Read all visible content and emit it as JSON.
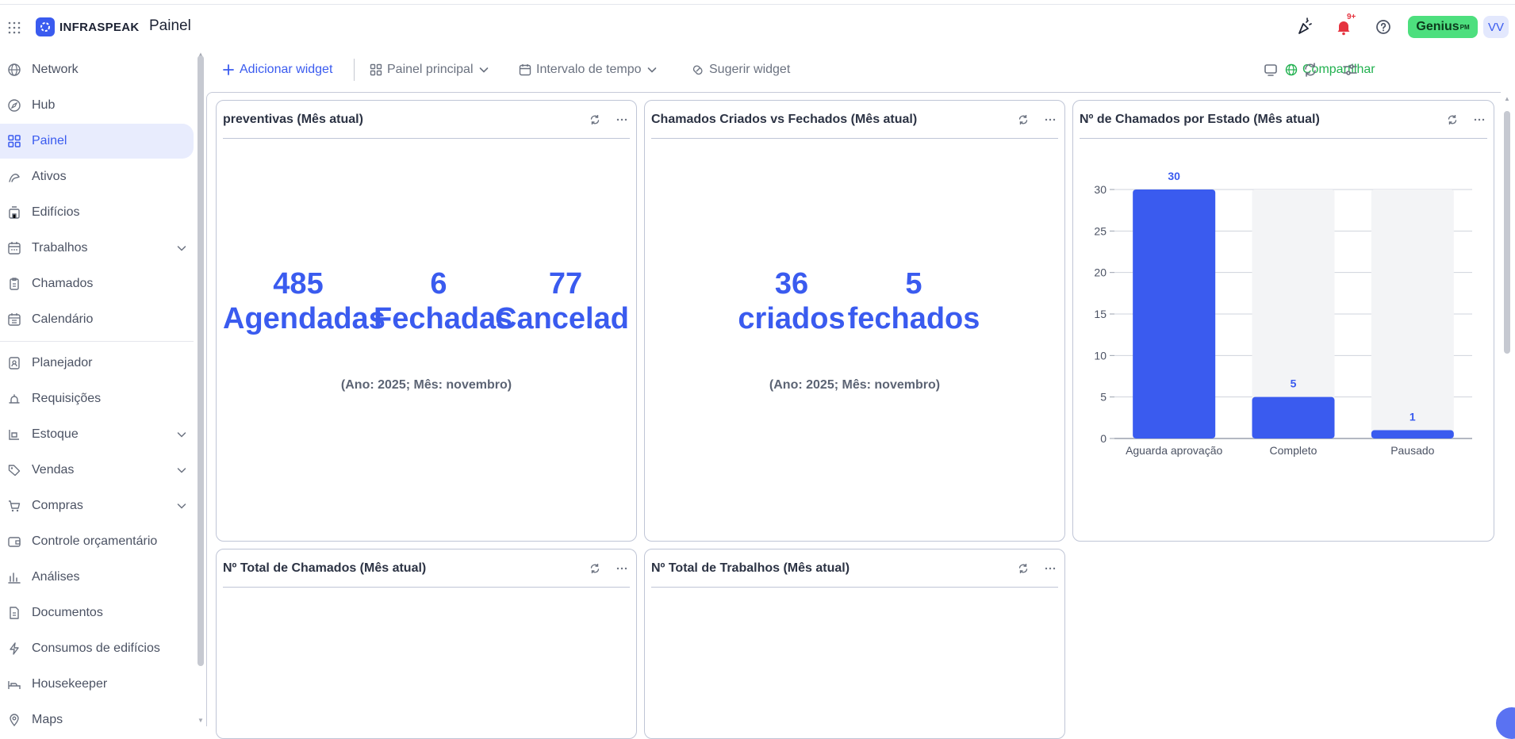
{
  "app": {
    "brand": "INFRASPEAK",
    "page_title": "Painel",
    "notifications_badge": "9+",
    "genius_label": "Genius",
    "genius_suffix": "PM",
    "avatar_initials": "VV"
  },
  "sidebar": {
    "items": [
      {
        "label": "Network",
        "icon": "globe-icon",
        "active": false,
        "expandable": false
      },
      {
        "label": "Hub",
        "icon": "compass-icon",
        "active": false,
        "expandable": false
      },
      {
        "label": "Painel",
        "icon": "dashboard-icon",
        "active": true,
        "expandable": false
      },
      {
        "label": "Ativos",
        "icon": "asset-icon",
        "active": false,
        "expandable": false
      },
      {
        "label": "Edifícios",
        "icon": "building-icon",
        "active": false,
        "expandable": false
      },
      {
        "label": "Trabalhos",
        "icon": "calendar-grid-icon",
        "active": false,
        "expandable": true
      },
      {
        "label": "Chamados",
        "icon": "clipboard-icon",
        "active": false,
        "expandable": false
      },
      {
        "label": "Calendário",
        "icon": "calendar-icon",
        "active": false,
        "expandable": false
      },
      {
        "label": "Planejador",
        "icon": "planner-icon",
        "active": false,
        "expandable": false
      },
      {
        "label": "Requisições",
        "icon": "bell-tray-icon",
        "active": false,
        "expandable": false
      },
      {
        "label": "Estoque",
        "icon": "stock-icon",
        "active": false,
        "expandable": true
      },
      {
        "label": "Vendas",
        "icon": "tag-icon",
        "active": false,
        "expandable": true
      },
      {
        "label": "Compras",
        "icon": "cart-icon",
        "active": false,
        "expandable": true
      },
      {
        "label": "Controle orçamentário",
        "icon": "wallet-icon",
        "active": false,
        "expandable": false
      },
      {
        "label": "Análises",
        "icon": "analytics-icon",
        "active": false,
        "expandable": false
      },
      {
        "label": "Documentos",
        "icon": "document-icon",
        "active": false,
        "expandable": false
      },
      {
        "label": "Consumos de edifícios",
        "icon": "lightning-icon",
        "active": false,
        "expandable": false
      },
      {
        "label": "Housekeeper",
        "icon": "bed-icon",
        "active": false,
        "expandable": false
      },
      {
        "label": "Maps",
        "icon": "map-pin-icon",
        "active": false,
        "expandable": false
      }
    ]
  },
  "toolbar": {
    "add_widget": "Adicionar widget",
    "main_panel": "Painel principal",
    "time_interval": "Intervalo de tempo",
    "suggest_widget": "Sugerir widget",
    "share": "Compartilhar"
  },
  "widgets": {
    "preventivas": {
      "title": "preventivas (Mês atual)",
      "kpis": [
        {
          "value": "485",
          "label": "Agendadas"
        },
        {
          "value": "6",
          "label": "Fechadas"
        },
        {
          "value": "77",
          "label": "Cancelad"
        }
      ],
      "caption": "(Ano: 2025; Mês: novembro)"
    },
    "created_closed": {
      "title": "Chamados Criados vs Fechados (Mês atual)",
      "kpis": [
        {
          "value": "36",
          "label": "criados"
        },
        {
          "value": "5",
          "label": "fechados"
        }
      ],
      "caption": "(Ano: 2025; Mês: novembro)"
    },
    "by_state": {
      "title": "Nº de Chamados por Estado (Mês atual)"
    },
    "total_tickets": {
      "title": "Nº Total de Chamados (Mês atual)"
    },
    "total_jobs": {
      "title": "Nº Total de Trabalhos (Mês atual)"
    }
  },
  "chart_data": {
    "type": "bar",
    "categories": [
      "Aguarda aprovação",
      "Completo",
      "Pausado"
    ],
    "values": [
      30,
      5,
      1
    ],
    "title": "",
    "xlabel": "",
    "ylabel": "",
    "ylim": [
      0,
      30
    ],
    "yticks": [
      0,
      5,
      10,
      15,
      20,
      25,
      30
    ],
    "grid": true,
    "bar_color": "#3a5bef",
    "track_color": "#f3f4f6"
  },
  "colors": {
    "accent": "#3a5bef",
    "share": "#22b150",
    "genius": "#4ddf7e",
    "alert": "#e5333f"
  }
}
